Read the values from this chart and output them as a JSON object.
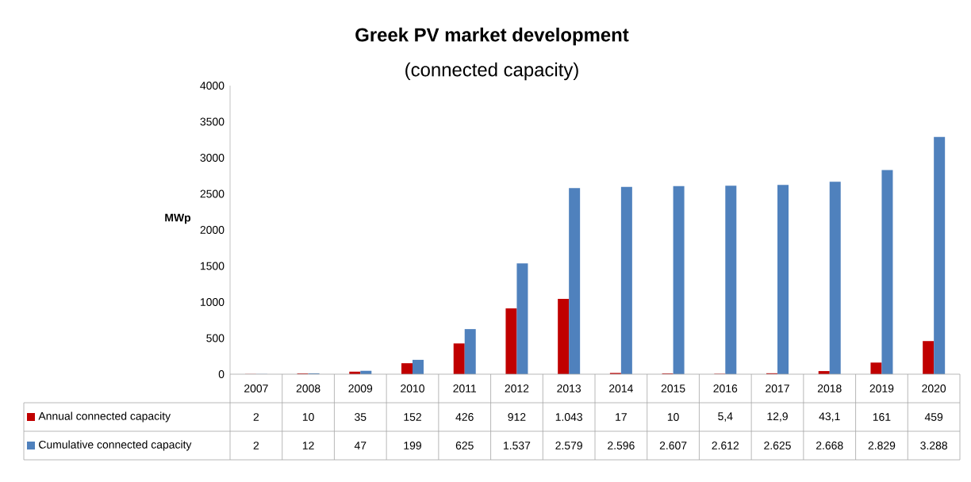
{
  "chart_data": {
    "type": "bar",
    "title": "Greek PV market development",
    "subtitle": "(connected capacity)",
    "ylabel": "MWp",
    "categories": [
      "2007",
      "2008",
      "2009",
      "2010",
      "2011",
      "2012",
      "2013",
      "2014",
      "2015",
      "2016",
      "2017",
      "2018",
      "2019",
      "2020"
    ],
    "series": [
      {
        "name": "Annual connected capacity",
        "color": "#c00000",
        "values": [
          2,
          10,
          35,
          152,
          426,
          912,
          1043,
          17,
          10,
          5.4,
          12.9,
          43.1,
          161,
          459
        ],
        "value_labels": [
          "2",
          "10",
          "35",
          "152",
          "426",
          "912",
          "1.043",
          "17",
          "10",
          "5,4",
          "12,9",
          "43,1",
          "161",
          "459"
        ]
      },
      {
        "name": "Cumulative connected capacity",
        "color": "#4f81bd",
        "values": [
          2,
          12,
          47,
          199,
          625,
          1537,
          2579,
          2596,
          2607,
          2612,
          2625,
          2668,
          2829,
          3288
        ],
        "value_labels": [
          "2",
          "12",
          "47",
          "199",
          "625",
          "1.537",
          "2.579",
          "2.596",
          "2.607",
          "2.612",
          "2.625",
          "2.668",
          "2.829",
          "3.288"
        ]
      }
    ],
    "ylim": [
      0,
      4000
    ],
    "yticks": [
      0,
      500,
      1000,
      1500,
      2000,
      2500,
      3000,
      3500,
      4000
    ],
    "legend": "bottom left"
  }
}
